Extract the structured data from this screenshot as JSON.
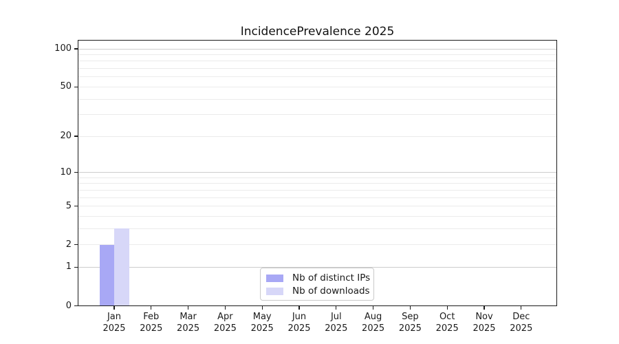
{
  "title": "IncidencePrevalence 2025",
  "chart_data": {
    "type": "bar",
    "title": "IncidencePrevalence 2025",
    "x_month_labels": [
      "Jan",
      "Feb",
      "Mar",
      "Apr",
      "May",
      "Jun",
      "Jul",
      "Aug",
      "Sep",
      "Oct",
      "Nov",
      "Dec"
    ],
    "x_year_label": "2025",
    "series": [
      {
        "name": "Nb of distinct IPs",
        "color": "#a8a8f5",
        "values": [
          2,
          0,
          0,
          0,
          0,
          0,
          0,
          0,
          0,
          0,
          0,
          0
        ]
      },
      {
        "name": "Nb of downloads",
        "color": "#d7d7f8",
        "values": [
          3,
          0,
          0,
          0,
          0,
          0,
          0,
          0,
          0,
          0,
          0,
          0
        ]
      }
    ],
    "yscale": "log1p",
    "ytick_values": [
      0,
      1,
      2,
      5,
      10,
      20,
      50,
      100
    ],
    "major_grid_values": [
      1,
      10,
      100
    ],
    "minor_grid_values": [
      2,
      3,
      4,
      5,
      6,
      7,
      8,
      9,
      20,
      30,
      40,
      50,
      60,
      70,
      80,
      90
    ],
    "legend_position": "bottom-center",
    "grid": true,
    "colors": {
      "major_grid": "#cccccc",
      "minor_grid": "#ebebeb",
      "spine": "#1a1a1a",
      "text": "#1a1a1a"
    }
  }
}
